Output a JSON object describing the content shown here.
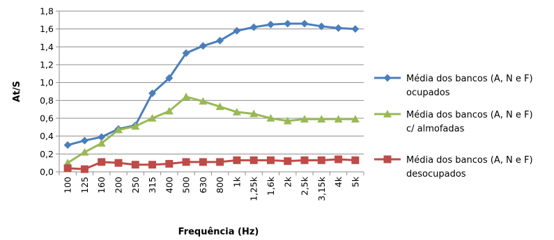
{
  "chart_data": {
    "type": "line",
    "categories": [
      "100",
      "125",
      "160",
      "200",
      "250",
      "315",
      "400",
      "500",
      "630",
      "800",
      "1k",
      "1,25k",
      "1,6k",
      "2k",
      "2,5k",
      "3,15k",
      "4k",
      "5k"
    ],
    "xlabel": "Frequência (Hz)",
    "ylabel": "At/S",
    "ylim": [
      0,
      1.8
    ],
    "yticks": [
      "0,0",
      "0,2",
      "0,4",
      "0,6",
      "0,8",
      "1,0",
      "1,2",
      "1,4",
      "1,6",
      "1,8"
    ],
    "grid": true,
    "legend_placement": "right",
    "series": [
      {
        "name": "Média dos bancos (A, N e F) ocupados",
        "name_lines": [
          "Média dos bancos (A, N e F)",
          "ocupados"
        ],
        "color": "#4a7ebb",
        "marker": "diamond",
        "values": [
          0.3,
          0.35,
          0.39,
          0.48,
          0.52,
          0.88,
          1.05,
          1.33,
          1.41,
          1.47,
          1.58,
          1.62,
          1.65,
          1.66,
          1.66,
          1.63,
          1.61,
          1.6
        ]
      },
      {
        "name": "Média dos bancos (A, N e F) c/ almofadas",
        "name_lines": [
          "Média dos bancos (A, N e F)",
          "c/ almofadas"
        ],
        "color": "#98b954",
        "marker": "triangle",
        "values": [
          0.1,
          0.22,
          0.32,
          0.47,
          0.51,
          0.6,
          0.68,
          0.84,
          0.79,
          0.73,
          0.67,
          0.65,
          0.6,
          0.57,
          0.59,
          0.59,
          0.59,
          0.59
        ]
      },
      {
        "name": "Média dos bancos (A, N e F) desocupados",
        "name_lines": [
          "Média dos bancos (A, N e F)",
          "desocupados"
        ],
        "color": "#be4b48",
        "marker": "square",
        "values": [
          0.04,
          0.03,
          0.11,
          0.1,
          0.08,
          0.08,
          0.09,
          0.11,
          0.11,
          0.11,
          0.13,
          0.13,
          0.13,
          0.12,
          0.13,
          0.13,
          0.14,
          0.13
        ]
      }
    ]
  }
}
